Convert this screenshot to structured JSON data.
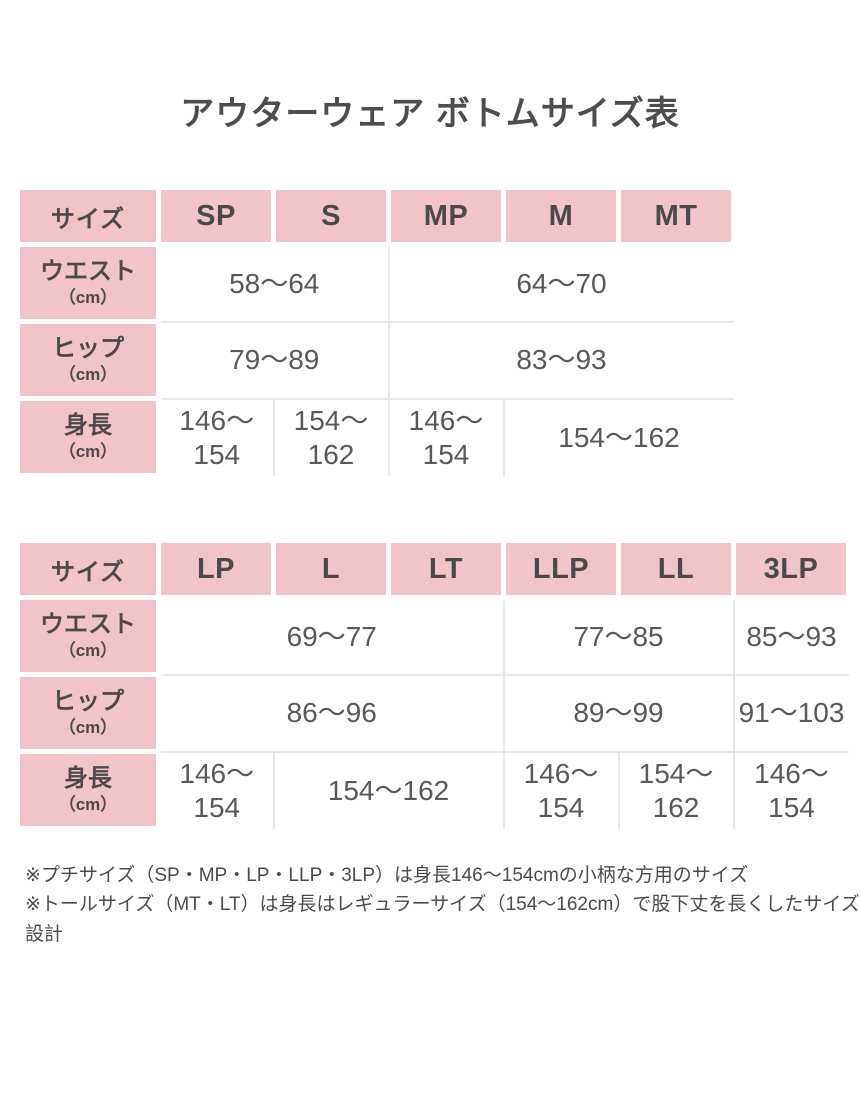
{
  "title": "アウターウェア ボトムサイズ表",
  "colors": {
    "header_pink": "#f0c4c8",
    "text_dark": "#4a4a4d",
    "grid_gray": "#e7e7e7",
    "background": "#ffffff"
  },
  "tables": [
    {
      "corner_label": "サイズ",
      "sizes": [
        "SP",
        "S",
        "MP",
        "M",
        "MT"
      ],
      "rows": [
        {
          "label": "ウエスト",
          "unit": "（cm）",
          "cells": [
            {
              "span": 2,
              "value": "58〜64"
            },
            {
              "span": 3,
              "value": "64〜70"
            }
          ]
        },
        {
          "label": "ヒップ",
          "unit": "（cm）",
          "cells": [
            {
              "span": 2,
              "value": "79〜89"
            },
            {
              "span": 3,
              "value": "83〜93"
            }
          ]
        },
        {
          "label": "身長",
          "unit": "（cm）",
          "cells": [
            {
              "span": 1,
              "value": "146〜\n154"
            },
            {
              "span": 1,
              "value": "154〜\n162"
            },
            {
              "span": 1,
              "value": "146〜\n154"
            },
            {
              "span": 2,
              "value": "154〜162"
            }
          ]
        }
      ]
    },
    {
      "corner_label": "サイズ",
      "sizes": [
        "LP",
        "L",
        "LT",
        "LLP",
        "LL",
        "3LP"
      ],
      "rows": [
        {
          "label": "ウエスト",
          "unit": "（cm）",
          "cells": [
            {
              "span": 3,
              "value": "69〜77"
            },
            {
              "span": 2,
              "value": "77〜85"
            },
            {
              "span": 1,
              "value": "85〜93"
            }
          ]
        },
        {
          "label": "ヒップ",
          "unit": "（cm）",
          "cells": [
            {
              "span": 3,
              "value": "86〜96"
            },
            {
              "span": 2,
              "value": "89〜99"
            },
            {
              "span": 1,
              "value": "91〜103"
            }
          ]
        },
        {
          "label": "身長",
          "unit": "（cm）",
          "cells": [
            {
              "span": 1,
              "value": "146〜\n154"
            },
            {
              "span": 2,
              "value": "154〜162"
            },
            {
              "span": 1,
              "value": "146〜\n154"
            },
            {
              "span": 1,
              "value": "154〜\n162"
            },
            {
              "span": 1,
              "value": "146〜\n154"
            }
          ]
        }
      ]
    }
  ],
  "footnotes": [
    "※プチサイズ（SP・MP・LP・LLP・3LP）は身長146〜154cmの小柄な方用のサイズ",
    "※トールサイズ（MT・LT）は身長はレギュラーサイズ（154〜162cm）で股下丈を長くしたサイズ設計"
  ]
}
